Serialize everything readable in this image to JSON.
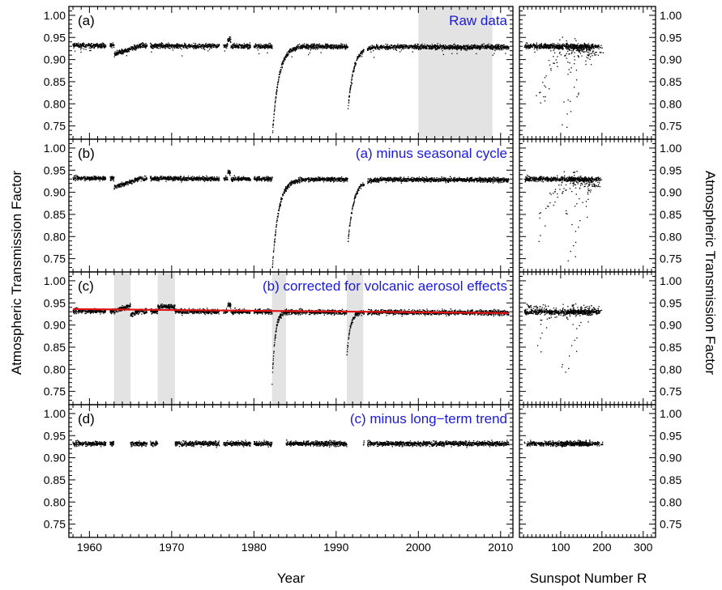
{
  "figure": {
    "y_label_left": "Atmospheric Transmission Factor",
    "y_label_right": "Atmospheric Transmission Factor",
    "x_label_time": "Year",
    "x_label_sunspot": "Sunspot Number R"
  },
  "chart_data": [
    {
      "type": "scatter",
      "panel": "a",
      "panel_label": "(a)",
      "annotation": "Raw data",
      "x_axis": "Year",
      "xlim": [
        1957.5,
        2011.5
      ],
      "ylim": [
        0.72,
        1.02
      ],
      "yticks": [
        0.75,
        0.8,
        0.85,
        0.9,
        0.95,
        1.0
      ],
      "ytick_labels": [
        "0.75",
        "0.80",
        "0.85",
        "0.90",
        "0.95",
        "1.00"
      ],
      "shaded_intervals": [
        [
          2000.0,
          2009.0
        ]
      ],
      "baseline_level": 0.932,
      "series_approx": [
        {
          "segment": "1958-1963",
          "mean": 0.933,
          "spread": 0.006
        },
        {
          "segment": "1963-1966 (Agung dip)",
          "mean": 0.912,
          "spread": 0.008
        },
        {
          "segment": "1966-1982",
          "mean": 0.931,
          "spread": 0.006
        },
        {
          "segment": "1982.3 El Chichon minimum",
          "value": 0.73
        },
        {
          "segment": "1982.3-1985 recovery",
          "from": 0.73,
          "to": 0.925
        },
        {
          "segment": "1985-1991.4",
          "mean": 0.931,
          "spread": 0.006
        },
        {
          "segment": "1991.5 Pinatubo minimum",
          "value": 0.79
        },
        {
          "segment": "1991.5-1994 recovery",
          "from": 0.79,
          "to": 0.925
        },
        {
          "segment": "1994-2011",
          "mean": 0.93,
          "spread": 0.006
        }
      ]
    },
    {
      "type": "scatter",
      "panel": "b",
      "panel_label": "(b)",
      "annotation": "(a) minus seasonal cycle",
      "x_axis": "Year",
      "xlim": [
        1957.5,
        2011.5
      ],
      "ylim": [
        0.72,
        1.02
      ],
      "yticks": [
        0.75,
        0.8,
        0.85,
        0.9,
        0.95,
        1.0
      ],
      "ytick_labels": [
        "0.75",
        "0.80",
        "0.85",
        "0.90",
        "0.95",
        "1.00"
      ],
      "baseline_level": 0.931
    },
    {
      "type": "scatter",
      "panel": "c",
      "panel_label": "(c)",
      "annotation": "(b) corrected for volcanic aerosol effects",
      "x_axis": "Year",
      "xlim": [
        1957.5,
        2011.5
      ],
      "ylim": [
        0.72,
        1.02
      ],
      "yticks": [
        0.75,
        0.8,
        0.85,
        0.9,
        0.95,
        1.0
      ],
      "ytick_labels": [
        "0.75",
        "0.80",
        "0.85",
        "0.90",
        "0.95",
        "1.00"
      ],
      "shaded_intervals": [
        [
          1963.0,
          1965.0
        ],
        [
          1968.3,
          1970.4
        ],
        [
          1982.2,
          1983.9
        ],
        [
          1991.3,
          1993.3
        ]
      ],
      "trend_line": {
        "x": [
          1958.0,
          2011.0
        ],
        "y": [
          0.936,
          0.927
        ],
        "color": "#e01414"
      }
    },
    {
      "type": "scatter",
      "panel": "d",
      "panel_label": "(d)",
      "annotation": "(c) minus long−term trend",
      "x_axis": "Year",
      "xlim": [
        1957.5,
        2011.5
      ],
      "ylim": [
        0.72,
        1.02
      ],
      "xticks": [
        1960,
        1970,
        1980,
        1990,
        2000,
        2010
      ],
      "xtick_labels": [
        "1960",
        "1970",
        "1980",
        "1990",
        "2000",
        "2010"
      ],
      "yticks": [
        0.75,
        0.8,
        0.85,
        0.9,
        0.95,
        1.0
      ],
      "ytick_labels": [
        "0.75",
        "0.80",
        "0.85",
        "0.90",
        "0.95",
        "1.00"
      ],
      "data_gaps": [
        [
          1963.0,
          1965.0
        ],
        [
          1968.3,
          1970.4
        ],
        [
          1982.2,
          1983.9
        ],
        [
          1991.3,
          1993.3
        ]
      ],
      "baseline_level": 0.932
    },
    {
      "type": "scatter",
      "panel": "sunspot",
      "x_axis": "Sunspot Number R",
      "xlim": [
        0,
        330
      ],
      "ylim": [
        0.72,
        1.02
      ],
      "xticks": [
        100,
        200,
        300
      ],
      "xtick_labels": [
        "100",
        "200",
        "300"
      ],
      "yticks": [
        0.75,
        0.8,
        0.85,
        0.9,
        0.95,
        1.0
      ],
      "ytick_labels": [
        "0.75",
        "0.80",
        "0.85",
        "0.90",
        "0.95",
        "1.00"
      ],
      "note": "right-hand column: same transmission values of each row plotted against sunspot number R"
    }
  ]
}
